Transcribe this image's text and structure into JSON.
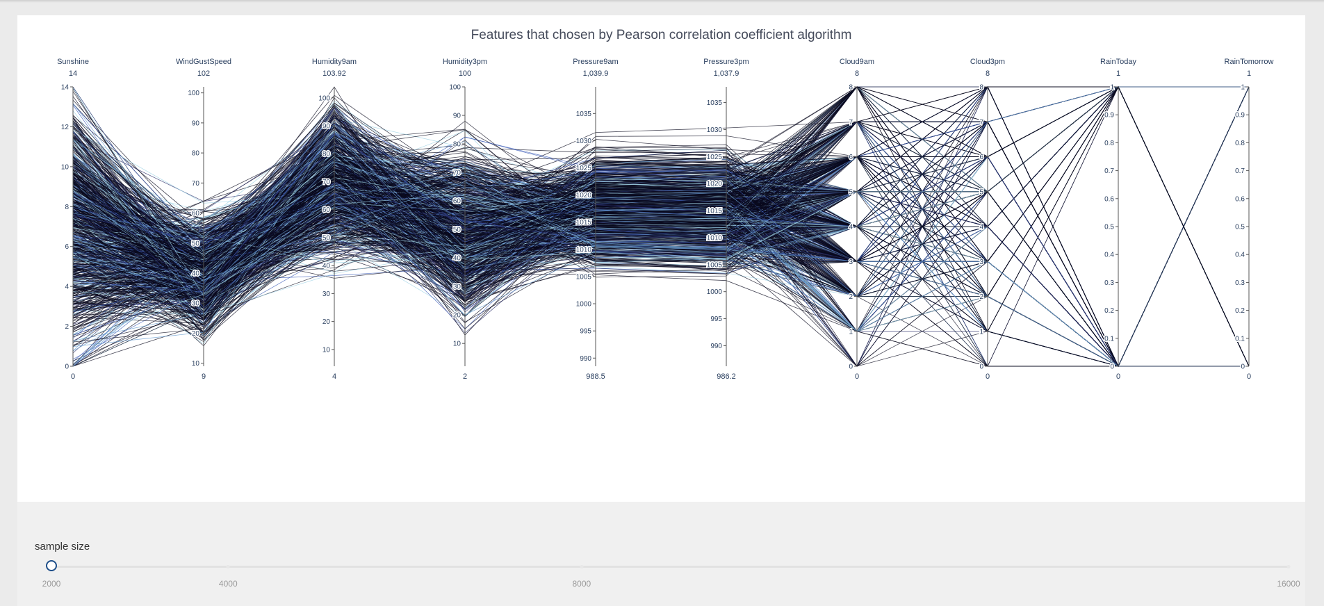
{
  "chart_data": {
    "type": "parallel_coordinates",
    "title": "Features that chosen by Pearson correlation coefficient algorithm",
    "colorscale": [
      "#0a0a1e",
      "#2b2f6b",
      "#3d5db8",
      "#6a9ed0",
      "#9fd3e6"
    ],
    "dimensions": [
      {
        "label": "Sunshine",
        "range": [
          0,
          14
        ],
        "range_labels": [
          "0",
          "14"
        ],
        "ticks": [
          0,
          2,
          4,
          6,
          8,
          10,
          12,
          14
        ]
      },
      {
        "label": "WindGustSpeed",
        "range": [
          9,
          102
        ],
        "range_labels": [
          "9",
          "102"
        ],
        "ticks": [
          10,
          20,
          30,
          40,
          50,
          60,
          70,
          80,
          90,
          100
        ]
      },
      {
        "label": "Humidity9am",
        "range": [
          4,
          103.92
        ],
        "range_labels": [
          "4",
          "103.92"
        ],
        "ticks": [
          10,
          20,
          30,
          40,
          50,
          60,
          70,
          80,
          90,
          100
        ]
      },
      {
        "label": "Humidity3pm",
        "range": [
          2,
          100
        ],
        "range_labels": [
          "2",
          "100"
        ],
        "ticks": [
          10,
          20,
          30,
          40,
          50,
          60,
          70,
          80,
          90,
          100
        ]
      },
      {
        "label": "Pressure9am",
        "range": [
          988.5,
          1039.9
        ],
        "range_labels": [
          "988.5",
          "1,039.9"
        ],
        "ticks": [
          990,
          995,
          1000,
          1005,
          1010,
          1015,
          1020,
          1025,
          1030,
          1035
        ]
      },
      {
        "label": "Pressure3pm",
        "range": [
          986.2,
          1037.9
        ],
        "range_labels": [
          "986.2",
          "1,037.9"
        ],
        "ticks": [
          990,
          995,
          1000,
          1005,
          1010,
          1015,
          1020,
          1025,
          1030,
          1035
        ]
      },
      {
        "label": "Cloud9am",
        "range": [
          0,
          8
        ],
        "range_labels": [
          "0",
          "8"
        ],
        "ticks": [
          0,
          1,
          2,
          3,
          4,
          5,
          6,
          7,
          8
        ]
      },
      {
        "label": "Cloud3pm",
        "range": [
          0,
          8
        ],
        "range_labels": [
          "0",
          "8"
        ],
        "ticks": [
          0,
          1,
          2,
          3,
          4,
          5,
          6,
          7,
          8
        ]
      },
      {
        "label": "RainToday",
        "range": [
          0,
          1
        ],
        "range_labels": [
          "0",
          "1"
        ],
        "ticks": [
          0,
          0.1,
          0.2,
          0.3,
          0.4,
          0.5,
          0.6,
          0.7,
          0.8,
          0.9,
          1
        ]
      },
      {
        "label": "RainTomorrow",
        "range": [
          0,
          1
        ],
        "range_labels": [
          "0",
          "1"
        ],
        "ticks": [
          0,
          0.1,
          0.2,
          0.3,
          0.4,
          0.5,
          0.6,
          0.7,
          0.8,
          0.9,
          1
        ]
      }
    ],
    "sample_size": 2000
  },
  "slider": {
    "label": "sample size",
    "min": 2000,
    "max": 16000,
    "value": 2000,
    "marks": [
      {
        "value": 2000,
        "label": "2000"
      },
      {
        "value": 4000,
        "label": "4000"
      },
      {
        "value": 8000,
        "label": "8000"
      },
      {
        "value": 16000,
        "label": "16000"
      }
    ]
  }
}
